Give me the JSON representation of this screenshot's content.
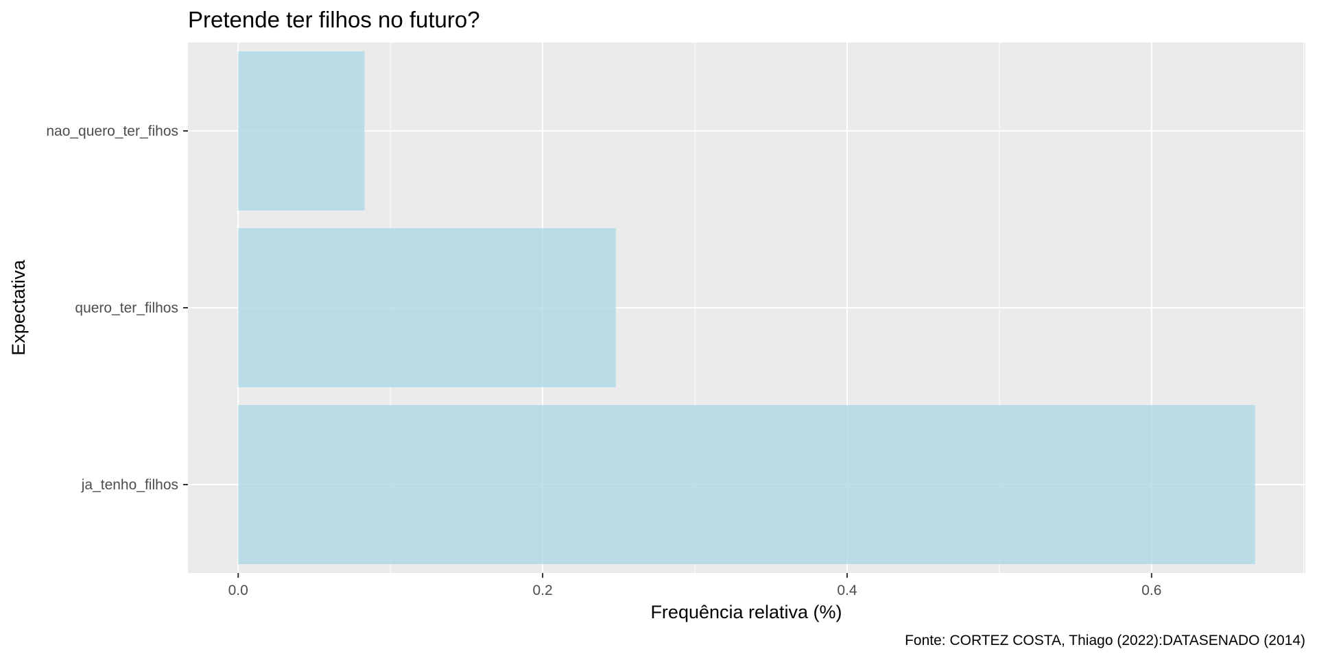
{
  "chart_data": {
    "type": "bar",
    "orientation": "horizontal",
    "title": "Pretende ter filhos no futuro?",
    "xlabel": "Frequência relativa (%)",
    "ylabel": "Expectativa",
    "caption": "Fonte: CORTEZ COSTA, Thiago (2022):DATASENADO (2014)",
    "categories": [
      "ja_tenho_filhos",
      "quero_ter_filhos",
      "nao_quero_ter_fihos"
    ],
    "values": [
      0.668,
      0.248,
      0.083
    ],
    "xlim": [
      -0.033,
      0.701
    ],
    "xticks": [
      0.0,
      0.2,
      0.4,
      0.6
    ],
    "xtick_labels": [
      "0.0",
      "0.2",
      "0.4",
      "0.6"
    ],
    "grid": true,
    "colors": {
      "bar": "#add8e6",
      "panel_background": "#ebebeb",
      "grid": "#ffffff",
      "tick_label": "#4d4d4d"
    }
  }
}
